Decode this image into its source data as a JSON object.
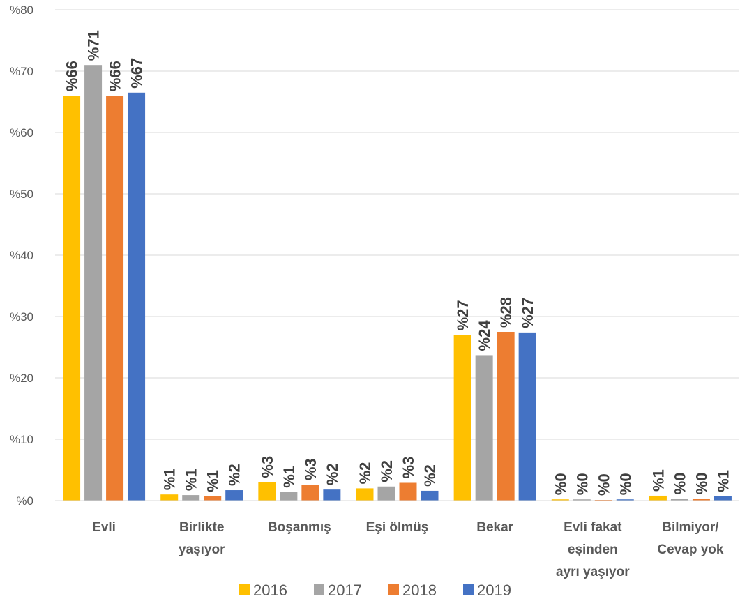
{
  "chart_data": {
    "type": "bar",
    "title": "",
    "xlabel": "",
    "ylabel": "",
    "ylim": [
      0,
      80
    ],
    "y_ticks": [
      "%0",
      "%10",
      "%20",
      "%30",
      "%40",
      "%50",
      "%60",
      "%70",
      "%80"
    ],
    "grid": true,
    "legend_position": "bottom",
    "categories": [
      [
        "Evli"
      ],
      [
        "Birlikte",
        "yaşıyor"
      ],
      [
        "Boşanmış"
      ],
      [
        "Eşi ölmüş"
      ],
      [
        "Bekar"
      ],
      [
        "Evli fakat",
        "eşinden",
        "ayrı yaşıyor"
      ],
      [
        "Bilmiyor/",
        "Cevap yok"
      ]
    ],
    "series": [
      {
        "name": "2016",
        "color": "#FFC000",
        "values": [
          66,
          1,
          3,
          2,
          27,
          0.2,
          0.8
        ],
        "labels": [
          "%66",
          "%1",
          "%3",
          "%2",
          "%27",
          "%0",
          "%1"
        ]
      },
      {
        "name": "2017",
        "color": "#A5A5A5",
        "values": [
          71,
          0.9,
          1.4,
          2.3,
          23.7,
          0.2,
          0.3
        ],
        "labels": [
          "%71",
          "%1",
          "%1",
          "%2",
          "%24",
          "%0",
          "%0"
        ]
      },
      {
        "name": "2018",
        "color": "#ED7D31",
        "values": [
          66,
          0.7,
          2.6,
          2.9,
          27.5,
          0.1,
          0.3
        ],
        "labels": [
          "%66",
          "%1",
          "%3",
          "%3",
          "%28",
          "%0",
          "%0"
        ]
      },
      {
        "name": "2019",
        "color": "#4472C4",
        "values": [
          66.5,
          1.7,
          1.8,
          1.6,
          27.4,
          0.2,
          0.7
        ],
        "labels": [
          "%67",
          "%2",
          "%2",
          "%2",
          "%27",
          "%0",
          "%1"
        ]
      }
    ]
  }
}
